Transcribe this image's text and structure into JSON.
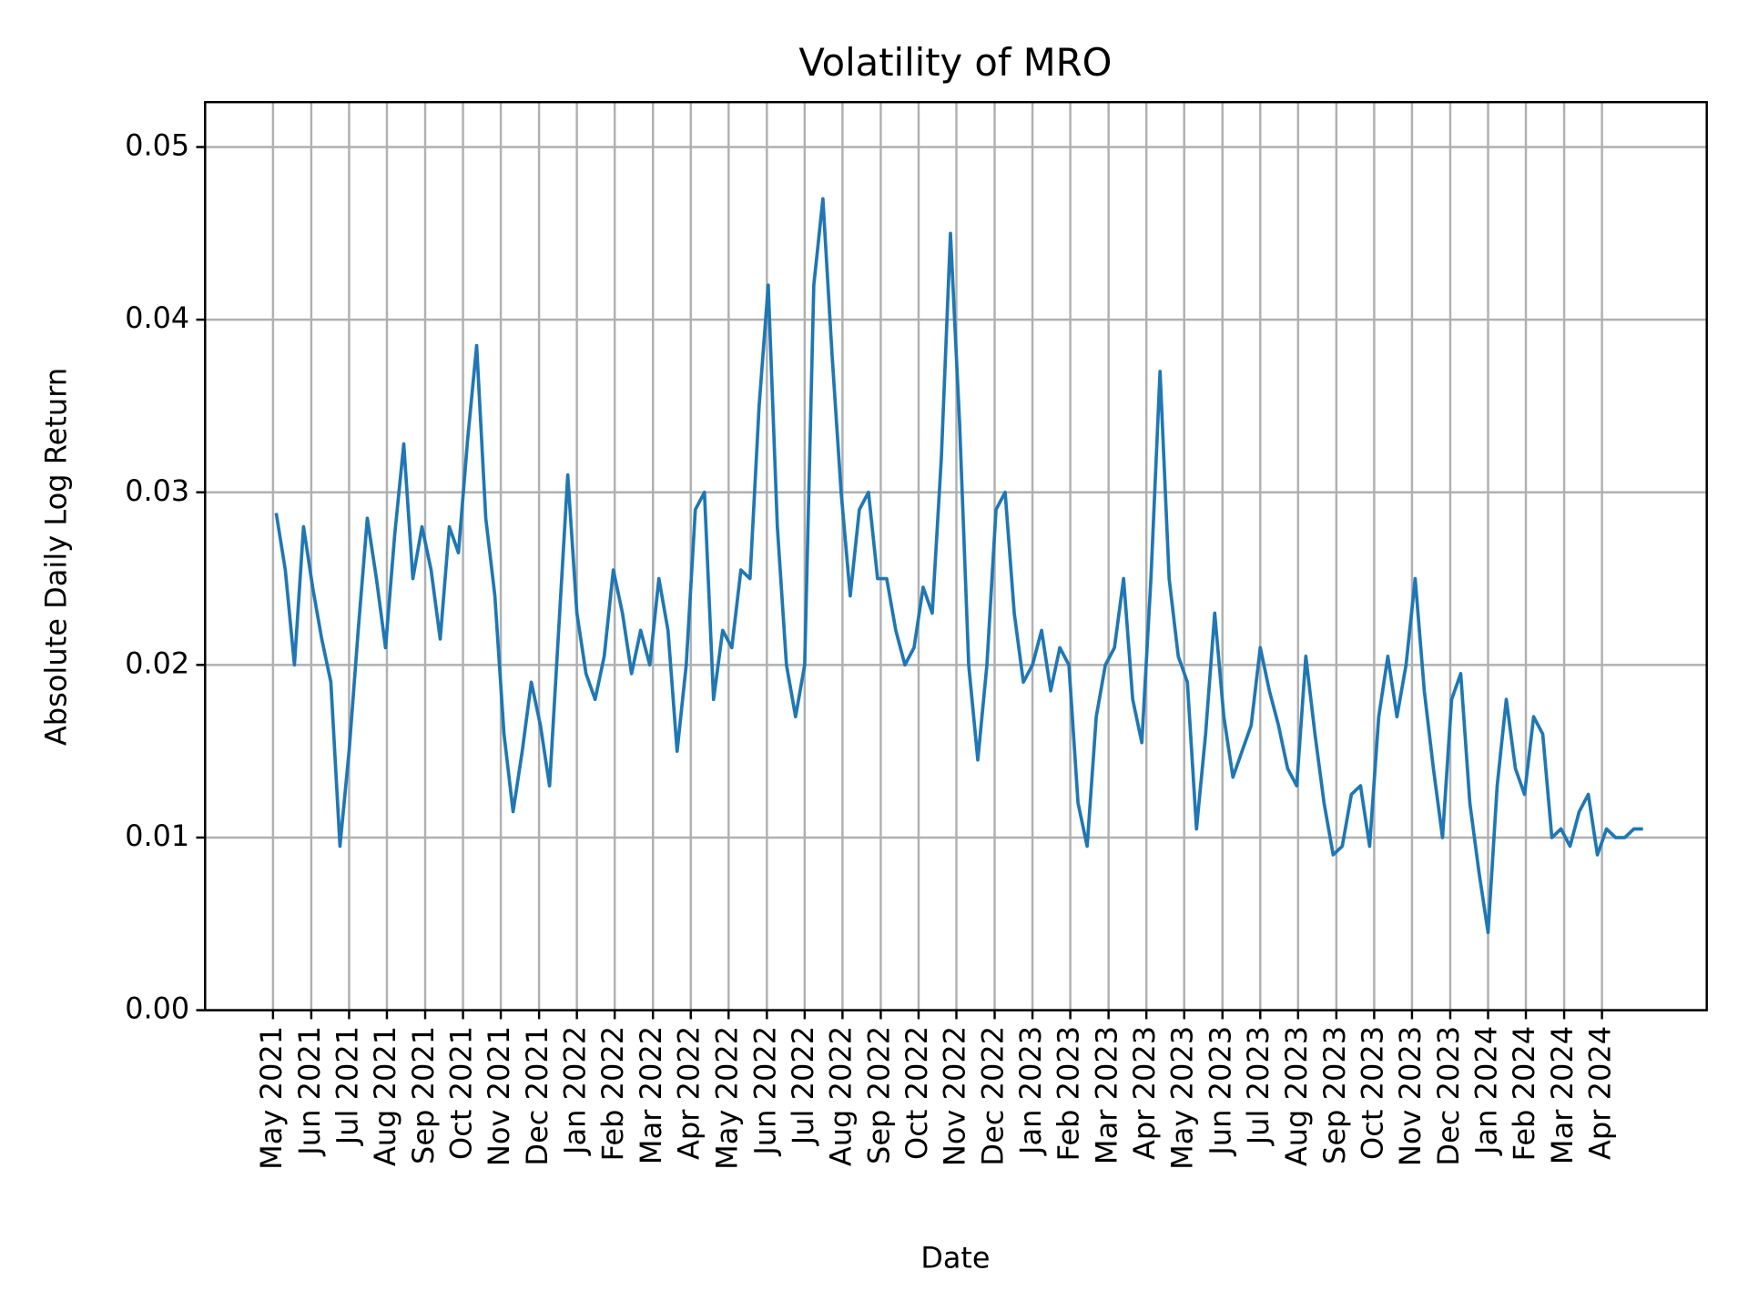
{
  "chart_data": {
    "type": "line",
    "title": "Volatility of MRO",
    "xlabel": "Date",
    "ylabel": "Absolute Daily Log Return",
    "grid": true,
    "xlim": [
      2021.184,
      2024.48
    ],
    "ylim": [
      0,
      0.0526
    ],
    "yticks": [
      {
        "value": 0,
        "label": "0.00"
      },
      0.01,
      0.02,
      0.03,
      0.04,
      0.05
    ],
    "xticks": [
      {
        "value": 2021.333,
        "label": "May 2021"
      },
      {
        "value": 2021.417,
        "label": "Jun 2021"
      },
      {
        "value": 2021.5,
        "label": "Jul 2021"
      },
      {
        "value": 2021.583,
        "label": "Aug 2021"
      },
      {
        "value": 2021.667,
        "label": "Sep 2021"
      },
      {
        "value": 2021.75,
        "label": "Oct 2021"
      },
      {
        "value": 2021.833,
        "label": "Nov 2021"
      },
      {
        "value": 2021.917,
        "label": "Dec 2021"
      },
      {
        "value": 2022.0,
        "label": "Jan 2022"
      },
      {
        "value": 2022.083,
        "label": "Feb 2022"
      },
      {
        "value": 2022.167,
        "label": "Mar 2022"
      },
      {
        "value": 2022.25,
        "label": "Apr 2022"
      },
      {
        "value": 2022.333,
        "label": "May 2022"
      },
      {
        "value": 2022.417,
        "label": "Jun 2022"
      },
      {
        "value": 2022.5,
        "label": "Jul 2022"
      },
      {
        "value": 2022.583,
        "label": "Aug 2022"
      },
      {
        "value": 2022.667,
        "label": "Sep 2022"
      },
      {
        "value": 2022.75,
        "label": "Oct 2022"
      },
      {
        "value": 2022.833,
        "label": "Nov 2022"
      },
      {
        "value": 2022.917,
        "label": "Dec 2022"
      },
      {
        "value": 2023.0,
        "label": "Jan 2023"
      },
      {
        "value": 2023.083,
        "label": "Feb 2023"
      },
      {
        "value": 2023.167,
        "label": "Mar 2023"
      },
      {
        "value": 2023.25,
        "label": "Apr 2023"
      },
      {
        "value": 2023.333,
        "label": "May 2023"
      },
      {
        "value": 2023.417,
        "label": "Jun 2023"
      },
      {
        "value": 2023.5,
        "label": "Jul 2023"
      },
      {
        "value": 2023.583,
        "label": "Aug 2023"
      },
      {
        "value": 2023.667,
        "label": "Sep 2023"
      },
      {
        "value": 2023.75,
        "label": "Oct 2023"
      },
      {
        "value": 2023.833,
        "label": "Nov 2023"
      },
      {
        "value": 2023.917,
        "label": "Dec 2023"
      },
      {
        "value": 2024.0,
        "label": "Jan 2024"
      },
      {
        "value": 2024.083,
        "label": "Feb 2024"
      },
      {
        "value": 2024.167,
        "label": "Mar 2024"
      },
      {
        "value": 2024.25,
        "label": "Apr 2024"
      }
    ],
    "x": [
      2021.34,
      2021.36,
      2021.38,
      2021.4,
      2021.42,
      2021.44,
      2021.46,
      2021.48,
      2021.5,
      2021.52,
      2021.54,
      2021.56,
      2021.58,
      2021.6,
      2021.62,
      2021.64,
      2021.66,
      2021.68,
      2021.7,
      2021.72,
      2021.74,
      2021.76,
      2021.78,
      2021.8,
      2021.82,
      2021.84,
      2021.86,
      2021.88,
      2021.9,
      2021.92,
      2021.94,
      2021.96,
      2021.98,
      2022.0,
      2022.02,
      2022.04,
      2022.06,
      2022.08,
      2022.1,
      2022.12,
      2022.14,
      2022.16,
      2022.18,
      2022.2,
      2022.22,
      2022.24,
      2022.26,
      2022.28,
      2022.3,
      2022.32,
      2022.34,
      2022.36,
      2022.38,
      2022.4,
      2022.42,
      2022.44,
      2022.46,
      2022.48,
      2022.5,
      2022.52,
      2022.54,
      2022.56,
      2022.58,
      2022.6,
      2022.62,
      2022.64,
      2022.66,
      2022.68,
      2022.7,
      2022.72,
      2022.74,
      2022.76,
      2022.78,
      2022.8,
      2022.82,
      2022.84,
      2022.86,
      2022.88,
      2022.9,
      2022.92,
      2022.94,
      2022.96,
      2022.98,
      2023.0,
      2023.02,
      2023.04,
      2023.06,
      2023.08,
      2023.1,
      2023.12,
      2023.14,
      2023.16,
      2023.18,
      2023.2,
      2023.22,
      2023.24,
      2023.26,
      2023.28,
      2023.3,
      2023.32,
      2023.34,
      2023.36,
      2023.38,
      2023.4,
      2023.42,
      2023.44,
      2023.46,
      2023.48,
      2023.5,
      2023.52,
      2023.54,
      2023.56,
      2023.58,
      2023.6,
      2023.62,
      2023.64,
      2023.66,
      2023.68,
      2023.7,
      2023.72,
      2023.74,
      2023.76,
      2023.78,
      2023.8,
      2023.82,
      2023.84,
      2023.86,
      2023.88,
      2023.9,
      2023.92,
      2023.94,
      2023.96,
      2023.98,
      2024.0,
      2024.02,
      2024.04,
      2024.06,
      2024.08,
      2024.1,
      2024.12,
      2024.14,
      2024.16,
      2024.18,
      2024.2,
      2024.22,
      2024.24,
      2024.26,
      2024.28,
      2024.3,
      2024.32,
      2024.34
    ],
    "series": [
      {
        "color": "#1f77b4",
        "values": [
          0.0288,
          0.0255,
          0.02,
          0.028,
          0.0245,
          0.0215,
          0.019,
          0.0095,
          0.015,
          0.022,
          0.0285,
          0.025,
          0.021,
          0.0275,
          0.0328,
          0.025,
          0.028,
          0.0255,
          0.0215,
          0.028,
          0.0265,
          0.033,
          0.0385,
          0.0285,
          0.024,
          0.016,
          0.0115,
          0.015,
          0.019,
          0.0165,
          0.013,
          0.022,
          0.031,
          0.023,
          0.0195,
          0.018,
          0.0205,
          0.0255,
          0.023,
          0.0195,
          0.022,
          0.02,
          0.025,
          0.022,
          0.015,
          0.02,
          0.029,
          0.03,
          0.018,
          0.022,
          0.021,
          0.0255,
          0.025,
          0.035,
          0.042,
          0.028,
          0.02,
          0.017,
          0.02,
          0.042,
          0.047,
          0.038,
          0.03,
          0.024,
          0.029,
          0.03,
          0.025,
          0.025,
          0.022,
          0.02,
          0.021,
          0.0245,
          0.023,
          0.032,
          0.045,
          0.034,
          0.02,
          0.0145,
          0.02,
          0.029,
          0.03,
          0.023,
          0.019,
          0.02,
          0.022,
          0.0185,
          0.021,
          0.02,
          0.012,
          0.0095,
          0.017,
          0.02,
          0.021,
          0.025,
          0.018,
          0.0155,
          0.025,
          0.037,
          0.025,
          0.0205,
          0.019,
          0.0105,
          0.016,
          0.023,
          0.017,
          0.0135,
          0.015,
          0.0165,
          0.021,
          0.0185,
          0.0165,
          0.014,
          0.013,
          0.0205,
          0.016,
          0.012,
          0.009,
          0.0095,
          0.0125,
          0.013,
          0.0095,
          0.017,
          0.0205,
          0.017,
          0.02,
          0.025,
          0.0185,
          0.014,
          0.01,
          0.018,
          0.0195,
          0.012,
          0.008,
          0.0045,
          0.013,
          0.018,
          0.014,
          0.0125,
          0.017,
          0.016,
          0.01,
          0.0105,
          0.0095,
          0.0115,
          0.0125,
          0.009,
          0.0105,
          0.01,
          0.01,
          0.0105,
          0.0105
        ]
      }
    ]
  }
}
